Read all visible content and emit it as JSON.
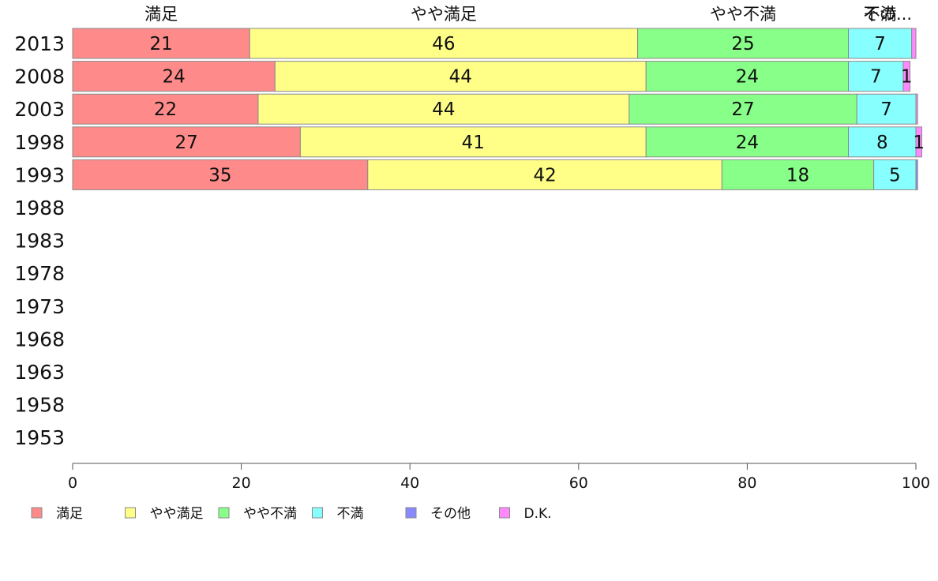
{
  "chart_data": {
    "type": "bar",
    "orientation": "horizontal",
    "stacked": true,
    "categories": [
      "2013",
      "2008",
      "2003",
      "1998",
      "1993",
      "1988",
      "1983",
      "1978",
      "1973",
      "1968",
      "1963",
      "1958",
      "1953"
    ],
    "series": [
      {
        "name": "満足",
        "color": "#ff8a8a",
        "values": [
          21,
          24,
          22,
          27,
          35,
          null,
          null,
          null,
          null,
          null,
          null,
          null,
          null
        ],
        "labels": [
          "21",
          "24",
          "22",
          "27",
          "35"
        ]
      },
      {
        "name": "やや満足",
        "color": "#ffff88",
        "values": [
          46,
          44,
          44,
          41,
          42,
          null,
          null,
          null,
          null,
          null,
          null,
          null,
          null
        ],
        "labels": [
          "46",
          "44",
          "44",
          "41",
          "42"
        ]
      },
      {
        "name": "やや不満",
        "color": "#88ff88",
        "values": [
          25,
          24,
          27,
          24,
          18,
          null,
          null,
          null,
          null,
          null,
          null,
          null,
          null
        ],
        "labels": [
          "25",
          "24",
          "27",
          "24",
          "18"
        ]
      },
      {
        "name": "不満",
        "color": "#88ffff",
        "values": [
          7.5,
          6.5,
          7,
          8,
          5,
          null,
          null,
          null,
          null,
          null,
          null,
          null,
          null
        ],
        "labels": [
          "7",
          "7",
          "7",
          "8",
          "5"
        ]
      },
      {
        "name": "その他",
        "color": "#8888ff",
        "values": [
          0,
          0,
          0,
          0,
          0.2,
          null,
          null,
          null,
          null,
          null,
          null,
          null,
          null
        ],
        "labels": [
          "",
          "",
          "",
          "",
          ""
        ]
      },
      {
        "name": "D.K.",
        "color": "#ff88ff",
        "values": [
          0.5,
          0.8,
          0.2,
          0.7,
          0,
          null,
          null,
          null,
          null,
          null,
          null,
          null,
          null
        ],
        "labels": [
          "",
          "1",
          "",
          "1",
          ""
        ]
      }
    ],
    "top_labels": [
      "満足",
      "やや満足",
      "やや不満",
      "不満",
      "その..."
    ],
    "xlim": [
      0,
      100
    ],
    "xticks": [
      "0",
      "20",
      "40",
      "60",
      "80",
      "100"
    ],
    "xlabel": "",
    "ylabel": "",
    "grid": false,
    "legend_position": "bottom"
  }
}
